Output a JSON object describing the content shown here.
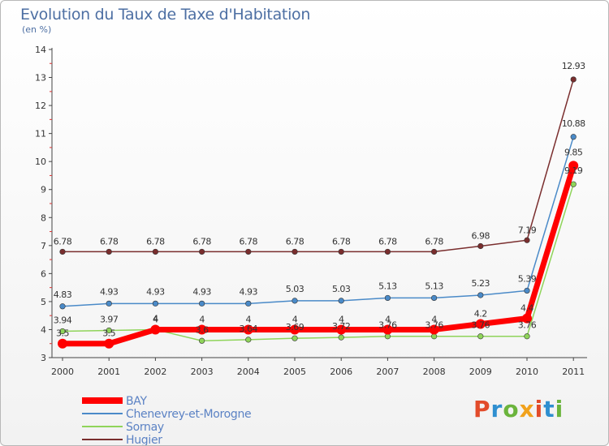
{
  "header": {
    "title": "Evolution du Taux de Taxe d'Habitation",
    "subtitle": "(en %)"
  },
  "logo": {
    "text": "Proxiti"
  },
  "chart_data": {
    "type": "line",
    "x": [
      "2000",
      "2001",
      "2002",
      "2003",
      "2004",
      "2005",
      "2006",
      "2007",
      "2008",
      "2009",
      "2010",
      "2011"
    ],
    "ylim": [
      3,
      14
    ],
    "yticks": [
      3,
      4,
      5,
      6,
      7,
      8,
      9,
      10,
      11,
      12,
      13,
      14
    ],
    "grid": false,
    "legend_position": "bottom-left",
    "series": [
      {
        "name": "Hugier",
        "color": "#7a2e2e",
        "values": [
          6.78,
          6.78,
          6.78,
          6.78,
          6.78,
          6.78,
          6.78,
          6.78,
          6.78,
          6.98,
          7.19,
          12.93
        ],
        "labels": [
          "6.78",
          "6.78",
          "6.78",
          "6.78",
          "6.78",
          "6.78",
          "6.78",
          "6.78",
          "6.78",
          "6.98",
          "7.19",
          "12.93"
        ]
      },
      {
        "name": "Chenevrey-et-Morogne",
        "color": "#4a8ac8",
        "values": [
          4.83,
          4.93,
          4.93,
          4.93,
          4.93,
          5.03,
          5.03,
          5.13,
          5.13,
          5.23,
          5.39,
          10.88
        ],
        "labels": [
          "4.83",
          "4.93",
          "4.93",
          "4.93",
          "4.93",
          "5.03",
          "5.03",
          "5.13",
          "5.13",
          "5.23",
          "5.39",
          "10.88"
        ]
      },
      {
        "name": "Sornay",
        "color": "#8fd45a",
        "values": [
          3.94,
          3.97,
          4.0,
          3.6,
          3.64,
          3.69,
          3.72,
          3.76,
          3.76,
          3.76,
          3.76,
          9.19
        ],
        "labels": [
          "3.94",
          "3.97",
          "4",
          "3.6",
          "3.64",
          "3.69",
          "3.72",
          "3.76",
          "3.76",
          "3.76",
          "3.76",
          "9.19"
        ]
      },
      {
        "name": "BAY",
        "color": "#ff0000",
        "values": [
          3.5,
          3.5,
          4,
          4,
          4,
          4,
          4,
          4,
          4,
          4.2,
          4.4,
          9.85
        ],
        "labels": [
          "3.5",
          "3.5",
          "4",
          "4",
          "4",
          "4",
          "4",
          "4",
          "4",
          "4.2",
          "4.4",
          "9.85"
        ]
      }
    ],
    "legend": [
      "BAY",
      "Chenevrey-et-Morogne",
      "Sornay",
      "Hugier"
    ]
  }
}
